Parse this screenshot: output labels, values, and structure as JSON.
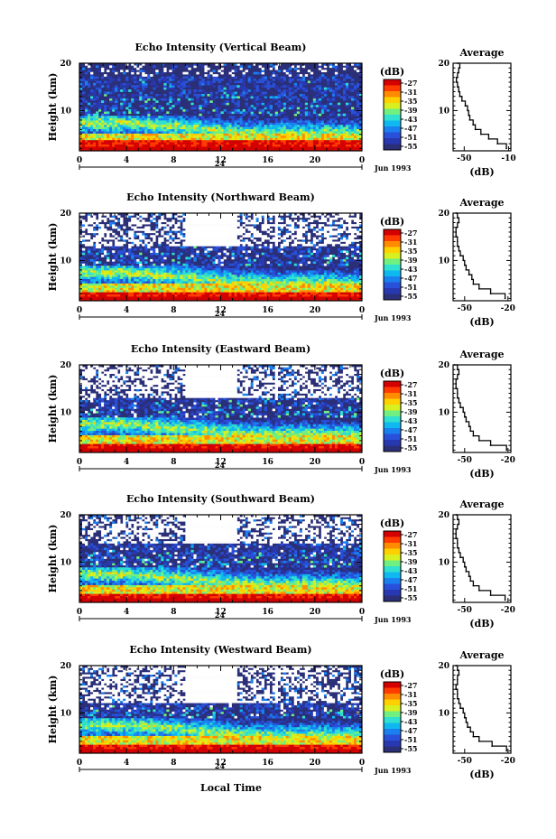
{
  "figure": {
    "xlabel": "Local Time",
    "date_label": "Jun 1993",
    "colorbar_unit": "(dB)",
    "colorbar_ticks": [
      "-27",
      "-31",
      "-35",
      "-39",
      "-43",
      "-47",
      "-51",
      "-55"
    ],
    "colormap": [
      "#d50000",
      "#ff3b00",
      "#ff8c00",
      "#ffd000",
      "#d8f020",
      "#70f080",
      "#30e0d0",
      "#10b8f0",
      "#1a80f0",
      "#2850d8",
      "#2838b0",
      "#2a2f78"
    ],
    "background_value_color": "#2a2f78"
  },
  "chart_data": [
    {
      "type": "heatmap",
      "title": "Echo Intensity (Vertical Beam)",
      "ylabel": "Height (km)",
      "x_ticks": [
        "0",
        "4",
        "8",
        "12",
        "16",
        "20",
        "0"
      ],
      "x_range_hours": [
        0,
        24
      ],
      "y_ticks": [
        "20",
        "10"
      ],
      "y_range_km": [
        1.5,
        20
      ],
      "day_marker": "24",
      "color_range_db": [
        -55,
        -27
      ],
      "profile": {
        "title": "Average",
        "xlabel": "(dB)",
        "x_ticks": [
          "-50",
          "-10"
        ],
        "x_range_db": [
          -60,
          -8
        ],
        "y_ticks": [
          "20",
          "10"
        ],
        "heights_km": [
          2,
          3,
          4,
          5,
          6,
          7,
          8,
          9,
          10,
          11,
          12,
          13,
          14,
          15,
          16,
          17,
          18,
          19,
          20
        ],
        "values_db": [
          -12,
          -20,
          -28,
          -35,
          -40,
          -42,
          -45,
          -46,
          -47,
          -49,
          -52,
          -54,
          -55,
          -56,
          -57,
          -56,
          -55,
          -54,
          -56
        ]
      },
      "echo_layer_km": [
        2,
        4
      ],
      "sparse_above_km": 17
    },
    {
      "type": "heatmap",
      "title": "Echo Intensity (Northward Beam)",
      "ylabel": "Height (km)",
      "x_ticks": [
        "0",
        "4",
        "8",
        "12",
        "16",
        "20",
        "0"
      ],
      "x_range_hours": [
        0,
        24
      ],
      "y_ticks": [
        "20",
        "10"
      ],
      "y_range_km": [
        1.5,
        20
      ],
      "day_marker": "24",
      "color_range_db": [
        -55,
        -27
      ],
      "profile": {
        "title": "Average",
        "xlabel": "(dB)",
        "x_ticks": [
          "-50",
          "-20"
        ],
        "x_range_db": [
          -58,
          -18
        ],
        "y_ticks": [
          "20",
          "10"
        ],
        "heights_km": [
          2,
          3,
          4,
          5,
          6,
          7,
          8,
          9,
          10,
          11,
          12,
          13,
          14,
          15,
          16,
          17,
          18,
          19,
          20
        ],
        "values_db": [
          -22,
          -32,
          -40,
          -44,
          -45,
          -47,
          -49,
          -50,
          -51,
          -53,
          -54,
          -55,
          -55,
          -56,
          -56,
          -55,
          -54,
          -55,
          -56
        ]
      },
      "echo_layer_km": [
        2,
        3.5
      ],
      "sparse_above_km": 13
    },
    {
      "type": "heatmap",
      "title": "Echo Intensity (Eastward Beam)",
      "ylabel": "Height (km)",
      "x_ticks": [
        "0",
        "4",
        "8",
        "12",
        "16",
        "20",
        "0"
      ],
      "x_range_hours": [
        0,
        24
      ],
      "y_ticks": [
        "20",
        "10"
      ],
      "y_range_km": [
        1.5,
        20
      ],
      "day_marker": "24",
      "color_range_db": [
        -55,
        -27
      ],
      "profile": {
        "title": "Average",
        "xlabel": "(dB)",
        "x_ticks": [
          "-50",
          "-20"
        ],
        "x_range_db": [
          -58,
          -18
        ],
        "y_ticks": [
          "20",
          "10"
        ],
        "heights_km": [
          2,
          3,
          4,
          5,
          6,
          7,
          8,
          9,
          10,
          11,
          12,
          13,
          14,
          15,
          16,
          17,
          18,
          19,
          20
        ],
        "values_db": [
          -21,
          -32,
          -40,
          -44,
          -46,
          -47,
          -49,
          -50,
          -51,
          -53,
          -54,
          -55,
          -55,
          -56,
          -56,
          -55,
          -54,
          -55,
          -57
        ]
      },
      "echo_layer_km": [
        2,
        3.5
      ],
      "sparse_above_km": 13
    },
    {
      "type": "heatmap",
      "title": "Echo Intensity (Southward Beam)",
      "ylabel": "Height (km)",
      "x_ticks": [
        "0",
        "4",
        "8",
        "12",
        "16",
        "20",
        "0"
      ],
      "x_range_hours": [
        0,
        24
      ],
      "y_ticks": [
        "20",
        "10"
      ],
      "y_range_km": [
        1.5,
        20
      ],
      "day_marker": "24",
      "color_range_db": [
        -55,
        -27
      ],
      "profile": {
        "title": "Average",
        "xlabel": "(dB)",
        "x_ticks": [
          "-50",
          "-20"
        ],
        "x_range_db": [
          -58,
          -18
        ],
        "y_ticks": [
          "20",
          "10"
        ],
        "heights_km": [
          2,
          3,
          4,
          5,
          6,
          7,
          8,
          9,
          10,
          11,
          12,
          13,
          14,
          15,
          16,
          17,
          18,
          19,
          20
        ],
        "values_db": [
          -22,
          -32,
          -40,
          -44,
          -46,
          -47,
          -49,
          -50,
          -51,
          -53,
          -54,
          -55,
          -55,
          -56,
          -56,
          -55,
          -54,
          -55,
          -56
        ]
      },
      "echo_layer_km": [
        2,
        3.5
      ],
      "sparse_above_km": 14
    },
    {
      "type": "heatmap",
      "title": "Echo Intensity (Westward Beam)",
      "ylabel": "Height (km)",
      "x_ticks": [
        "0",
        "4",
        "8",
        "12",
        "16",
        "20",
        "0"
      ],
      "x_range_hours": [
        0,
        24
      ],
      "y_ticks": [
        "20",
        "10"
      ],
      "y_range_km": [
        1.5,
        20
      ],
      "day_marker": "24",
      "color_range_db": [
        -55,
        -27
      ],
      "profile": {
        "title": "Average",
        "xlabel": "(dB)",
        "x_ticks": [
          "-50",
          "-20"
        ],
        "x_range_db": [
          -58,
          -18
        ],
        "y_ticks": [
          "20",
          "10"
        ],
        "heights_km": [
          2,
          3,
          4,
          5,
          6,
          7,
          8,
          9,
          10,
          11,
          12,
          13,
          14,
          15,
          16,
          17,
          18,
          19,
          20
        ],
        "values_db": [
          -21,
          -31,
          -40,
          -44,
          -46,
          -48,
          -49,
          -50,
          -51,
          -53,
          -54,
          -55,
          -55,
          -56,
          -55,
          -55,
          -54,
          -55,
          -56
        ]
      },
      "echo_layer_km": [
        2,
        3.5
      ],
      "sparse_above_km": 12
    }
  ]
}
